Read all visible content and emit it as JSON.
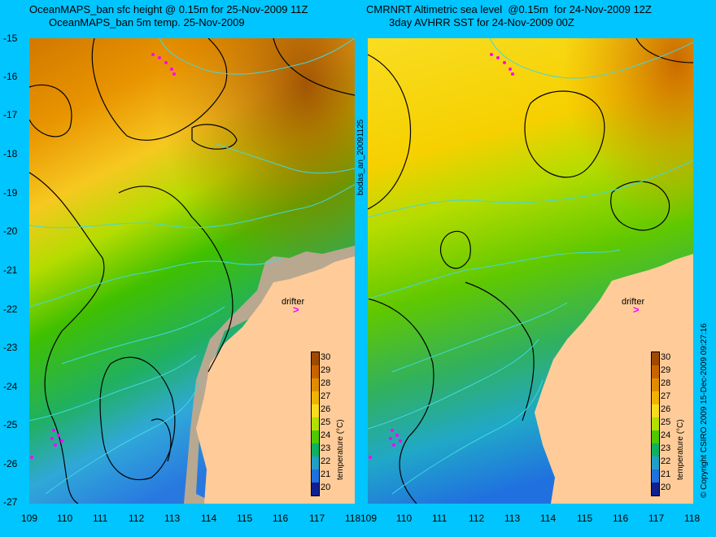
{
  "left_panel": {
    "title_line1": "OceanMAPS_ban sfc height @ 0.15m for 25-Nov-2009 11Z",
    "title_line2": "OceanMAPS_ban 5m temp. 25-Nov-2009",
    "drifter_label": "drifter"
  },
  "right_panel": {
    "title_line1": "CMRNRT Altimetric sea level  @0.15m  for 24-Nov-2009 12Z",
    "title_line2": "3day AVHRR SST for 24-Nov-2009 00Z",
    "drifter_label": "drifter"
  },
  "center_vertical_label": "bodas_an_20091125",
  "right_vertical_label": "© Copyright CSIRO 2009   15-Dec-2009 09:27:16",
  "latitude_ticks": [
    "-15",
    "-16",
    "-17",
    "-18",
    "-19",
    "-20",
    "-21",
    "-22",
    "-23",
    "-24",
    "-25",
    "-26",
    "-27"
  ],
  "longitude_ticks": [
    "109",
    "110",
    "111",
    "112",
    "113",
    "114",
    "115",
    "116",
    "117",
    "118"
  ],
  "colorbar": {
    "title": "temperature (°C)",
    "labels": [
      "30",
      "29",
      "28",
      "27",
      "26",
      "25",
      "24",
      "23",
      "22",
      "21",
      "20"
    ],
    "colors": [
      "#a04a00",
      "#c86400",
      "#e08c00",
      "#f0b400",
      "#f8dc20",
      "#b4e000",
      "#50c800",
      "#10b060",
      "#20a0c8",
      "#2070e0",
      "#102090"
    ]
  },
  "colors": {
    "background": "#00c5ff",
    "land": "#ffcc99",
    "land_model_mask": "#b8a890",
    "contour_black": "#000000",
    "contour_cyan": "#40d8e0",
    "drifter": "#ff00ff"
  }
}
